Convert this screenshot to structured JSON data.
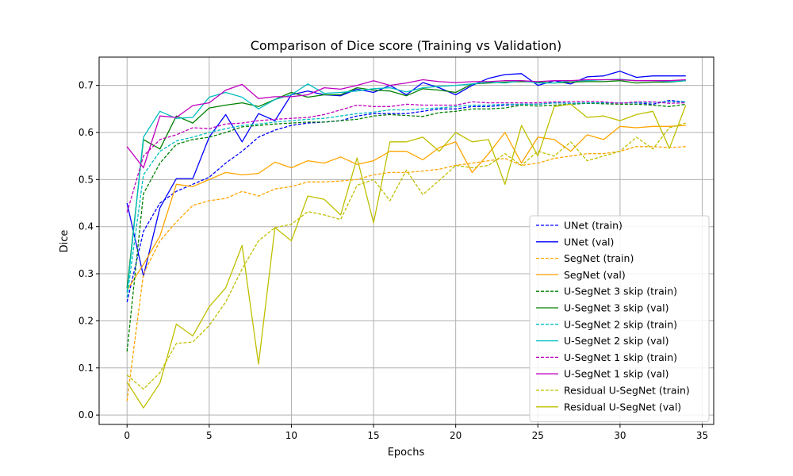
{
  "chart_data": {
    "type": "line",
    "title": "Comparison of Dice score (Training vs Validation)",
    "xlabel": "Epochs",
    "ylabel": "Dice",
    "xlim": [
      -1.7,
      35.7
    ],
    "ylim": [
      -0.02,
      0.76
    ],
    "xticks": [
      0,
      5,
      10,
      15,
      20,
      25,
      30,
      35
    ],
    "yticks": [
      0.0,
      0.1,
      0.2,
      0.3,
      0.4,
      0.5,
      0.6,
      0.7
    ],
    "grid": true,
    "legend_position": "lower-right",
    "x": [
      0,
      1,
      2,
      3,
      4,
      5,
      6,
      7,
      8,
      9,
      10,
      11,
      12,
      13,
      14,
      15,
      16,
      17,
      18,
      19,
      20,
      21,
      22,
      23,
      24,
      25,
      26,
      27,
      28,
      29,
      30,
      31,
      32,
      33,
      34
    ],
    "series": [
      {
        "name": "UNet (train)",
        "color": "#0000ff",
        "dash": true,
        "values": [
          0.24,
          0.39,
          0.45,
          0.475,
          0.49,
          0.505,
          0.535,
          0.56,
          0.59,
          0.605,
          0.615,
          0.62,
          0.622,
          0.625,
          0.635,
          0.64,
          0.64,
          0.64,
          0.645,
          0.65,
          0.65,
          0.655,
          0.655,
          0.658,
          0.66,
          0.66,
          0.663,
          0.662,
          0.662,
          0.663,
          0.663,
          0.663,
          0.66,
          0.668,
          0.665
        ]
      },
      {
        "name": "UNet (val)",
        "color": "#0000ff",
        "dash": false,
        "values": [
          0.45,
          0.295,
          0.44,
          0.502,
          0.502,
          0.59,
          0.638,
          0.58,
          0.64,
          0.625,
          0.68,
          0.688,
          0.68,
          0.678,
          0.692,
          0.685,
          0.7,
          0.68,
          0.706,
          0.695,
          0.68,
          0.7,
          0.715,
          0.723,
          0.725,
          0.7,
          0.71,
          0.703,
          0.718,
          0.72,
          0.73,
          0.717,
          0.72,
          0.72,
          0.72
        ]
      },
      {
        "name": "SegNet (train)",
        "color": "#ffa500",
        "dash": true,
        "values": [
          0.03,
          0.3,
          0.37,
          0.41,
          0.445,
          0.455,
          0.46,
          0.475,
          0.465,
          0.48,
          0.485,
          0.495,
          0.495,
          0.497,
          0.5,
          0.51,
          0.515,
          0.515,
          0.518,
          0.522,
          0.53,
          0.535,
          0.54,
          0.545,
          0.53,
          0.535,
          0.545,
          0.55,
          0.555,
          0.555,
          0.56,
          0.57,
          0.57,
          0.568,
          0.57
        ]
      },
      {
        "name": "SegNet (val)",
        "color": "#ffa500",
        "dash": false,
        "values": [
          0.265,
          0.32,
          0.38,
          0.49,
          0.485,
          0.5,
          0.515,
          0.51,
          0.513,
          0.537,
          0.525,
          0.54,
          0.535,
          0.548,
          0.532,
          0.54,
          0.56,
          0.56,
          0.542,
          0.568,
          0.58,
          0.515,
          0.555,
          0.6,
          0.535,
          0.59,
          0.585,
          0.56,
          0.595,
          0.585,
          0.613,
          0.61,
          0.613,
          0.613,
          0.615
        ]
      },
      {
        "name": "U-SegNet 3 skip (train)",
        "color": "#008000",
        "dash": true,
        "values": [
          0.135,
          0.47,
          0.535,
          0.575,
          0.585,
          0.59,
          0.6,
          0.612,
          0.615,
          0.618,
          0.62,
          0.622,
          0.622,
          0.625,
          0.628,
          0.635,
          0.638,
          0.636,
          0.634,
          0.642,
          0.645,
          0.65,
          0.65,
          0.652,
          0.658,
          0.656,
          0.658,
          0.66,
          0.662,
          0.661,
          0.66,
          0.66,
          0.658,
          0.655,
          0.66
        ]
      },
      {
        "name": "U-SegNet 3 skip (val)",
        "color": "#008000",
        "dash": false,
        "values": [
          0.27,
          0.585,
          0.565,
          0.635,
          0.62,
          0.652,
          0.658,
          0.663,
          0.655,
          0.67,
          0.685,
          0.675,
          0.68,
          0.68,
          0.695,
          0.69,
          0.688,
          0.678,
          0.693,
          0.69,
          0.685,
          0.703,
          0.705,
          0.707,
          0.708,
          0.707,
          0.705,
          0.707,
          0.708,
          0.708,
          0.71,
          0.705,
          0.707,
          0.707,
          0.71
        ]
      },
      {
        "name": "U-SegNet 2 skip (train)",
        "color": "#00bfbf",
        "dash": true,
        "values": [
          0.25,
          0.51,
          0.56,
          0.582,
          0.59,
          0.6,
          0.608,
          0.615,
          0.618,
          0.622,
          0.625,
          0.628,
          0.63,
          0.635,
          0.64,
          0.643,
          0.648,
          0.648,
          0.65,
          0.652,
          0.655,
          0.658,
          0.658,
          0.66,
          0.66,
          0.66,
          0.663,
          0.662,
          0.663,
          0.663,
          0.663,
          0.663,
          0.664,
          0.665,
          0.665
        ]
      },
      {
        "name": "U-SegNet 2 skip (val)",
        "color": "#00bfbf",
        "dash": false,
        "values": [
          0.26,
          0.59,
          0.645,
          0.63,
          0.632,
          0.675,
          0.685,
          0.675,
          0.65,
          0.67,
          0.68,
          0.703,
          0.683,
          0.685,
          0.688,
          0.693,
          0.695,
          0.686,
          0.695,
          0.698,
          0.7,
          0.703,
          0.707,
          0.705,
          0.71,
          0.705,
          0.705,
          0.71,
          0.71,
          0.712,
          0.713,
          0.71,
          0.71,
          0.708,
          0.71
        ]
      },
      {
        "name": "U-SegNet 1 skip (train)",
        "color": "#bf00bf",
        "dash": true,
        "values": [
          0.43,
          0.55,
          0.585,
          0.595,
          0.61,
          0.608,
          0.618,
          0.62,
          0.625,
          0.628,
          0.63,
          0.632,
          0.638,
          0.648,
          0.658,
          0.655,
          0.655,
          0.66,
          0.658,
          0.658,
          0.658,
          0.665,
          0.663,
          0.663,
          0.663,
          0.663,
          0.665,
          0.665,
          0.666,
          0.665,
          0.662,
          0.665,
          0.665,
          0.662,
          0.663
        ]
      },
      {
        "name": "U-SegNet 1 skip (val)",
        "color": "#bf00bf",
        "dash": false,
        "values": [
          0.57,
          0.525,
          0.635,
          0.632,
          0.657,
          0.663,
          0.69,
          0.702,
          0.672,
          0.676,
          0.676,
          0.68,
          0.695,
          0.692,
          0.7,
          0.71,
          0.7,
          0.705,
          0.712,
          0.708,
          0.706,
          0.708,
          0.708,
          0.71,
          0.71,
          0.708,
          0.71,
          0.71,
          0.712,
          0.712,
          0.712,
          0.71,
          0.71,
          0.71,
          0.712
        ]
      },
      {
        "name": "Residual U-SegNet (train)",
        "color": "#bfbf00",
        "dash": true,
        "values": [
          0.085,
          0.055,
          0.09,
          0.152,
          0.155,
          0.19,
          0.24,
          0.31,
          0.37,
          0.398,
          0.405,
          0.432,
          0.425,
          0.415,
          0.488,
          0.5,
          0.455,
          0.52,
          0.468,
          0.498,
          0.53,
          0.525,
          0.53,
          0.555,
          0.53,
          0.56,
          0.55,
          0.58,
          0.54,
          0.55,
          0.56,
          0.59,
          0.565,
          0.61,
          0.62
        ]
      },
      {
        "name": "Residual U-SegNet (val)",
        "color": "#bfbf00",
        "dash": false,
        "values": [
          0.07,
          0.015,
          0.068,
          0.193,
          0.168,
          0.23,
          0.27,
          0.36,
          0.108,
          0.398,
          0.37,
          0.465,
          0.458,
          0.425,
          0.546,
          0.408,
          0.58,
          0.58,
          0.59,
          0.56,
          0.6,
          0.58,
          0.585,
          0.49,
          0.615,
          0.55,
          0.655,
          0.66,
          0.632,
          0.635,
          0.625,
          0.638,
          0.645,
          0.566,
          0.658
        ]
      }
    ]
  }
}
